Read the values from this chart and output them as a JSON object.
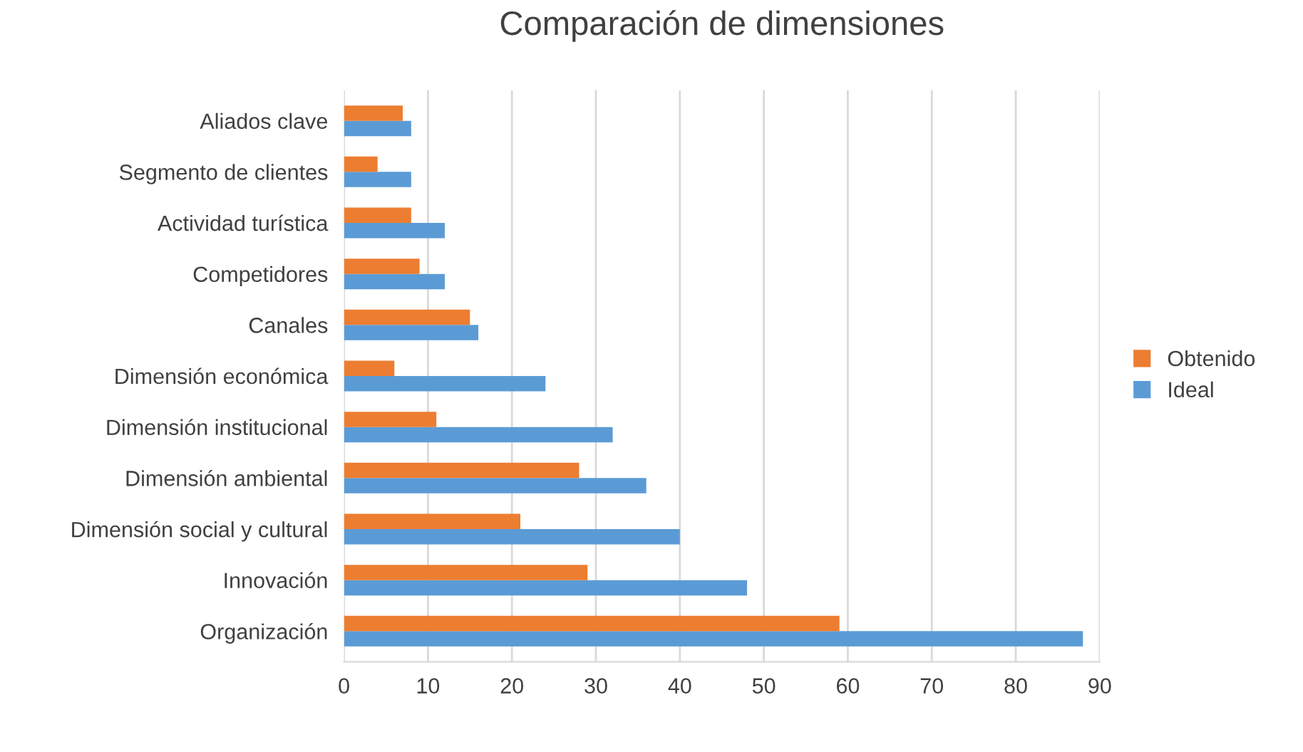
{
  "chart_data": {
    "type": "bar",
    "orientation": "horizontal",
    "title": "Comparación de dimensiones",
    "categories": [
      "Aliados clave",
      "Segmento de clientes",
      "Actividad turística",
      "Competidores",
      "Canales",
      "Dimensión económica",
      "Dimensión institucional",
      "Dimensión ambiental",
      "Dimensión social y cultural",
      "Innovación",
      "Organización"
    ],
    "series": [
      {
        "name": "Ideal",
        "color": "#5b9bd5",
        "values": [
          8,
          8,
          12,
          12,
          16,
          24,
          32,
          36,
          40,
          48,
          88
        ]
      },
      {
        "name": "Obtenido",
        "color": "#ed7d31",
        "values": [
          7,
          4,
          8,
          9,
          15,
          6,
          11,
          28,
          21,
          29,
          59
        ]
      }
    ],
    "xlim": [
      0,
      90
    ],
    "xticks": [
      0,
      10,
      20,
      30,
      40,
      50,
      60,
      70,
      80,
      90
    ],
    "grid": "x",
    "legend": "right"
  }
}
